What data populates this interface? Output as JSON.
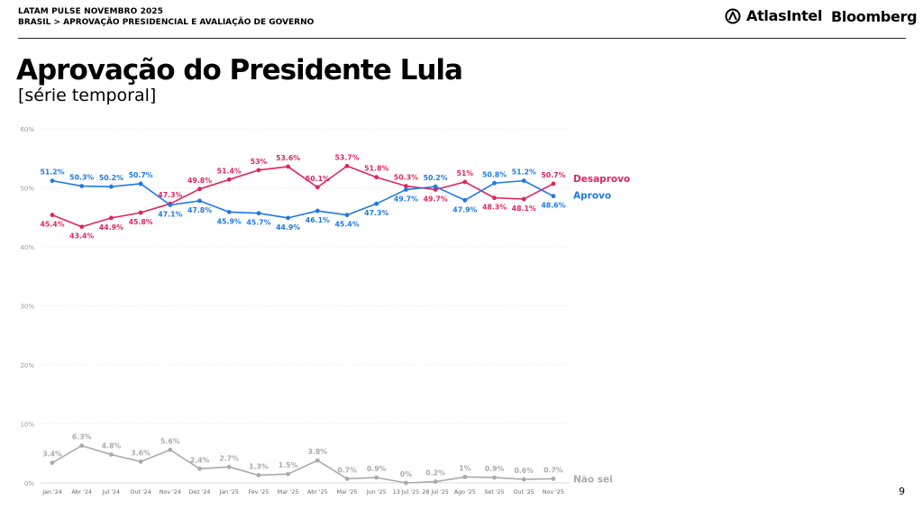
{
  "header": {
    "line1": "LATAM PULSE NOVEMBRO 2025",
    "line2": "BRASIL > APROVAÇÃO PRESIDENCIAL E AVALIAÇÃO DE GOVERNO"
  },
  "brands": {
    "atlas": "AtlasIntel",
    "bloomberg": "Bloomberg"
  },
  "title": "Aprovação do Presidente Lula",
  "subtitle": "[série temporal]",
  "page_number": "9",
  "colors": {
    "desaprovo": "#e0245e",
    "aprovo": "#1e78e6",
    "naosei": "#aaaaaa",
    "grid": "#dddddd"
  },
  "chart_data": {
    "type": "line",
    "categories": [
      "Jan '24",
      "Abr '24",
      "Jul '24",
      "Out '24",
      "Nov '24",
      "Dez '24",
      "Jan '25",
      "Fev '25",
      "Mar '25",
      "Abr '25",
      "Mai '25",
      "Jun '25",
      "13 Jul '25",
      "28 Jul '25",
      "Ago '25",
      "Set '25",
      "Out '25",
      "Nov '25"
    ],
    "ylim": [
      0,
      60
    ],
    "yticks": [
      0,
      10,
      20,
      30,
      40,
      50,
      60
    ],
    "ytick_labels": [
      "0%",
      "10%",
      "20%",
      "30%",
      "40%",
      "50%",
      "60%"
    ],
    "grid": true,
    "series": [
      {
        "name": "Desaprovo",
        "values": [
          45.4,
          43.4,
          44.9,
          45.8,
          47.3,
          49.8,
          51.4,
          53,
          53.6,
          50.1,
          53.7,
          51.8,
          50.3,
          49.7,
          51,
          48.3,
          48.1,
          50.7
        ],
        "labels": [
          "45.4%",
          "43.4%",
          "44.9%",
          "45.8%",
          "47.3%",
          "49.8%",
          "51.4%",
          "53%",
          "53.6%",
          "50.1%",
          "53.7%",
          "51.8%",
          "50.3%",
          "49.7%",
          "51%",
          "48.3%",
          "48.1%",
          "50.7%"
        ]
      },
      {
        "name": "Aprovo",
        "values": [
          51.2,
          50.3,
          50.2,
          50.7,
          47.1,
          47.8,
          45.9,
          45.7,
          44.9,
          46.1,
          45.4,
          47.3,
          49.7,
          50.2,
          47.9,
          50.8,
          51.2,
          48.6
        ],
        "labels": [
          "51.2%",
          "50.3%",
          "50.2%",
          "50.7%",
          "47.1%",
          "47.8%",
          "45.9%",
          "45.7%",
          "44.9%",
          "46.1%",
          "45.4%",
          "47.3%",
          "49.7%",
          "50.2%",
          "47.9%",
          "50.8%",
          "51.2%",
          "48.6%"
        ]
      },
      {
        "name": "Não sei",
        "values": [
          3.4,
          6.3,
          4.8,
          3.6,
          5.6,
          2.4,
          2.7,
          1.3,
          1.5,
          3.8,
          0.7,
          0.9,
          0,
          0.2,
          1,
          0.9,
          0.6,
          0.7
        ],
        "labels": [
          "3.4%",
          "6.3%",
          "4.8%",
          "3.6%",
          "5.6%",
          "2.4%",
          "2.7%",
          "1.3%",
          "1.5%",
          "3.8%",
          "0.7%",
          "0.9%",
          "0%",
          "0.2%",
          "1%",
          "0.9%",
          "0.6%",
          "0.7%"
        ]
      }
    ]
  }
}
